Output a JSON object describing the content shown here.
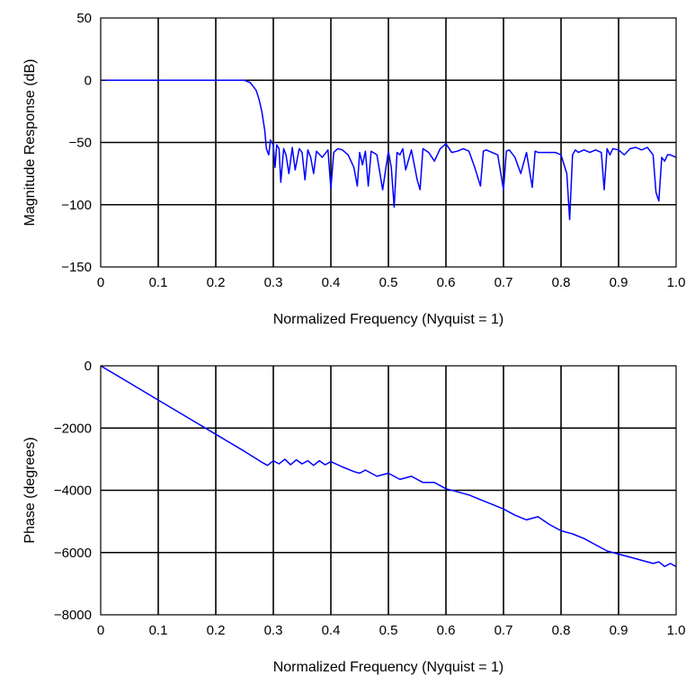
{
  "chart_data": [
    {
      "type": "line",
      "title": "",
      "xlabel": "Normalized Frequency (Nyquist = 1)",
      "ylabel": "Magnitude Response (dB)",
      "xlim": [
        0,
        1
      ],
      "ylim": [
        -150,
        50
      ],
      "xticks": [
        0,
        0.1,
        0.2,
        0.3,
        0.4,
        0.5,
        0.6,
        0.7,
        0.8,
        0.9,
        1.0
      ],
      "xtick_labels": [
        "0",
        "0.1",
        "0.2",
        "0.3",
        "0.4",
        "0.5",
        "0.6",
        "0.7",
        "0.8",
        "0.9",
        "1.0"
      ],
      "yticks": [
        50,
        0,
        -50,
        -100,
        -150
      ],
      "ytick_labels": [
        "50",
        "0",
        "−50",
        "−100",
        "−150"
      ],
      "grid": true,
      "line_color": "#0000ff",
      "series": [
        {
          "x": [
            0,
            0.05,
            0.1,
            0.15,
            0.2,
            0.24,
            0.25,
            0.26,
            0.27,
            0.275,
            0.28,
            0.285,
            0.288,
            0.292,
            0.295,
            0.3,
            0.303,
            0.306,
            0.31,
            0.313,
            0.318,
            0.322,
            0.327,
            0.333,
            0.338,
            0.345,
            0.35,
            0.355,
            0.36,
            0.365,
            0.37,
            0.375,
            0.385,
            0.395,
            0.4,
            0.405,
            0.412,
            0.42,
            0.43,
            0.44,
            0.446,
            0.45,
            0.455,
            0.46,
            0.465,
            0.47,
            0.48,
            0.49,
            0.5,
            0.505,
            0.51,
            0.515,
            0.52,
            0.525,
            0.53,
            0.54,
            0.55,
            0.555,
            0.56,
            0.57,
            0.58,
            0.59,
            0.6,
            0.61,
            0.62,
            0.63,
            0.64,
            0.65,
            0.66,
            0.665,
            0.67,
            0.68,
            0.69,
            0.7,
            0.705,
            0.71,
            0.72,
            0.73,
            0.74,
            0.75,
            0.755,
            0.76,
            0.77,
            0.78,
            0.79,
            0.8,
            0.81,
            0.815,
            0.82,
            0.825,
            0.83,
            0.84,
            0.85,
            0.86,
            0.87,
            0.875,
            0.88,
            0.885,
            0.89,
            0.9,
            0.91,
            0.92,
            0.93,
            0.94,
            0.95,
            0.96,
            0.965,
            0.97,
            0.975,
            0.98,
            0.985,
            0.99,
            1.0
          ],
          "y": [
            0,
            0,
            0,
            0,
            0,
            0,
            0,
            -2,
            -8,
            -15,
            -25,
            -40,
            -55,
            -60,
            -48,
            -52,
            -70,
            -52,
            -55,
            -82,
            -55,
            -60,
            -75,
            -54,
            -72,
            -55,
            -58,
            -80,
            -56,
            -62,
            -75,
            -57,
            -62,
            -56,
            -87,
            -58,
            -55,
            -56,
            -60,
            -70,
            -85,
            -58,
            -68,
            -57,
            -85,
            -57,
            -60,
            -88,
            -57,
            -70,
            -102,
            -58,
            -60,
            -55,
            -72,
            -56,
            -80,
            -88,
            -55,
            -58,
            -65,
            -55,
            -51,
            -58,
            -57,
            -55,
            -57,
            -70,
            -85,
            -57,
            -56,
            -58,
            -60,
            -88,
            -57,
            -56,
            -62,
            -75,
            -58,
            -86,
            -57,
            -58,
            -58,
            -58,
            -58,
            -60,
            -75,
            -112,
            -60,
            -56,
            -58,
            -56,
            -58,
            -56,
            -58,
            -88,
            -55,
            -60,
            -55,
            -56,
            -60,
            -55,
            -54,
            -56,
            -54,
            -60,
            -90,
            -97,
            -62,
            -65,
            -60,
            -60,
            -62
          ]
        }
      ]
    },
    {
      "type": "line",
      "title": "",
      "xlabel": "Normalized Frequency (Nyquist = 1)",
      "ylabel": "Phase (degrees)",
      "xlim": [
        0,
        1
      ],
      "ylim": [
        -8000,
        0
      ],
      "xticks": [
        0,
        0.1,
        0.2,
        0.3,
        0.4,
        0.5,
        0.6,
        0.7,
        0.8,
        0.9,
        1.0
      ],
      "xtick_labels": [
        "0",
        "0.1",
        "0.2",
        "0.3",
        "0.4",
        "0.5",
        "0.6",
        "0.7",
        "0.8",
        "0.9",
        "1.0"
      ],
      "yticks": [
        0,
        -2000,
        -4000,
        -6000,
        -8000
      ],
      "ytick_labels": [
        "0",
        "−2000",
        "−4000",
        "−6000",
        "−8000"
      ],
      "grid": true,
      "line_color": "#0000ff",
      "series": [
        {
          "x": [
            0,
            0.05,
            0.1,
            0.15,
            0.2,
            0.25,
            0.28,
            0.29,
            0.3,
            0.31,
            0.32,
            0.33,
            0.34,
            0.35,
            0.36,
            0.37,
            0.38,
            0.39,
            0.4,
            0.42,
            0.44,
            0.45,
            0.46,
            0.48,
            0.5,
            0.52,
            0.54,
            0.56,
            0.58,
            0.6,
            0.62,
            0.64,
            0.66,
            0.68,
            0.7,
            0.72,
            0.74,
            0.76,
            0.78,
            0.8,
            0.82,
            0.84,
            0.86,
            0.88,
            0.9,
            0.92,
            0.94,
            0.96,
            0.97,
            0.98,
            0.99,
            1.0
          ],
          "y": [
            0,
            -550,
            -1100,
            -1650,
            -2200,
            -2750,
            -3100,
            -3200,
            -3050,
            -3150,
            -3000,
            -3180,
            -3020,
            -3150,
            -3050,
            -3200,
            -3050,
            -3180,
            -3080,
            -3250,
            -3400,
            -3450,
            -3350,
            -3550,
            -3450,
            -3650,
            -3550,
            -3750,
            -3750,
            -3950,
            -4050,
            -4150,
            -4300,
            -4450,
            -4600,
            -4800,
            -4950,
            -4850,
            -5100,
            -5300,
            -5400,
            -5550,
            -5750,
            -5950,
            -6050,
            -6150,
            -6250,
            -6350,
            -6300,
            -6450,
            -6350,
            -6450
          ]
        }
      ]
    }
  ]
}
